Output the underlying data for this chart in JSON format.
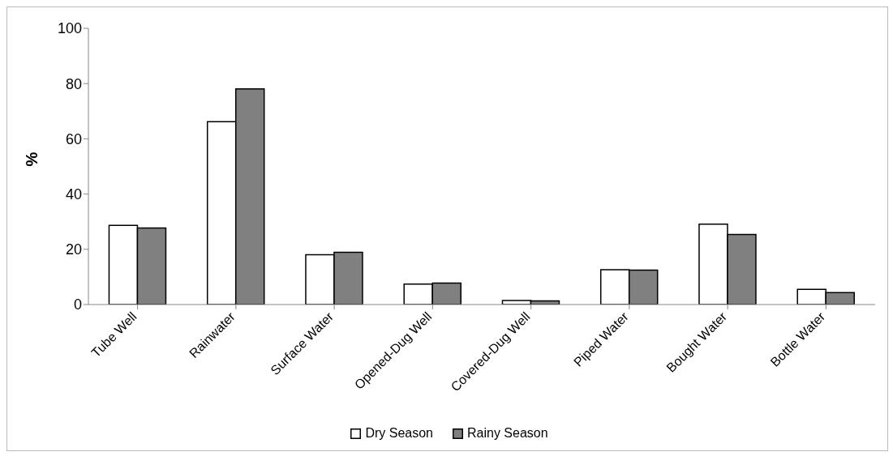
{
  "chart_data": {
    "type": "bar",
    "ylabel": "%",
    "categories": [
      "Tube Well",
      "Rainwater",
      "Surface Water",
      "Opened-Dug Well",
      "Covered-Dug Well",
      "Piped Water",
      "Bought Water",
      "Bottle Water"
    ],
    "series": [
      {
        "name": "Dry Season",
        "color": "#ffffff",
        "values": [
          28.7,
          66.2,
          18.0,
          7.4,
          1.5,
          12.6,
          29.1,
          5.5
        ]
      },
      {
        "name": "Rainy Season",
        "color": "#808080",
        "values": [
          27.7,
          78.1,
          18.9,
          7.8,
          1.3,
          12.5,
          25.4,
          4.3
        ]
      }
    ],
    "ylim": [
      0,
      100
    ],
    "yticks": [
      0,
      20,
      40,
      60,
      80,
      100
    ],
    "grid": false,
    "legend": "bottom"
  }
}
